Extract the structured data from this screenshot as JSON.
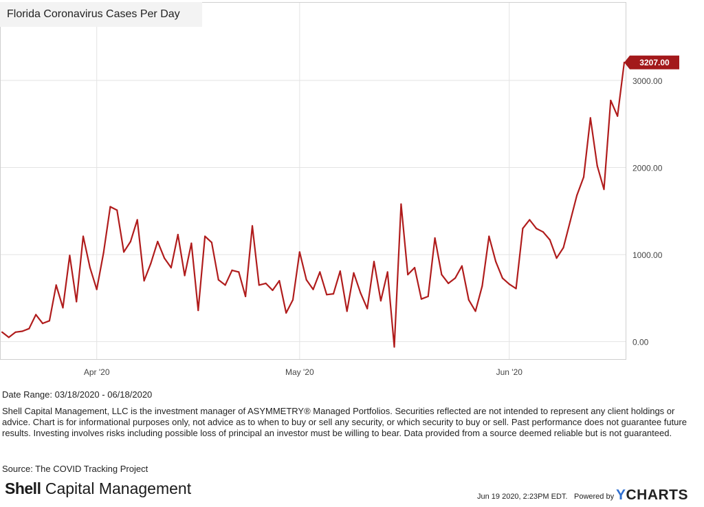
{
  "chart_data": {
    "type": "line",
    "title": "Florida Coronavirus Cases Per Day",
    "series": [
      {
        "name": "Florida Coronavirus Cases Per Day",
        "color": "#b01c1c",
        "values": [
          110,
          50,
          110,
          120,
          150,
          310,
          210,
          240,
          650,
          390,
          990,
          460,
          1210,
          850,
          600,
          1020,
          1550,
          1510,
          1030,
          1150,
          1400,
          700,
          900,
          1150,
          960,
          850,
          1230,
          760,
          1130,
          360,
          1210,
          1140,
          710,
          650,
          820,
          800,
          520,
          1330,
          650,
          670,
          590,
          700,
          330,
          480,
          1030,
          710,
          600,
          800,
          540,
          550,
          810,
          350,
          790,
          560,
          380,
          920,
          470,
          800,
          -60,
          1580,
          770,
          850,
          490,
          520,
          1190,
          770,
          670,
          730,
          870,
          480,
          350,
          640,
          1210,
          920,
          730,
          660,
          610,
          1300,
          1400,
          1300,
          1260,
          1170,
          960,
          1080,
          1380,
          1680,
          1890,
          2570,
          2020,
          1750,
          2770,
          2590,
          3207
        ]
      }
    ],
    "ylim": [
      -200,
      3900
    ],
    "yticks": [
      0,
      1000,
      2000,
      3000
    ],
    "ytick_labels": [
      "0.00",
      "1000.00",
      "2000.00",
      "3000.00"
    ],
    "xlabel": "",
    "ylabel": "",
    "xticks": [
      {
        "label": "Apr '20",
        "index": 14
      },
      {
        "label": "May '20",
        "index": 44
      },
      {
        "label": "Jun '20",
        "index": 75
      }
    ],
    "last_value_label": "3207.00",
    "grid": true
  },
  "footer": {
    "date_range": "Date Range: 03/18/2020 - 06/18/2020",
    "disclaimer": "Shell Capital Management, LLC is the investment manager of ASYMMETRY® Managed Portfolios. Securities reflected are not intended to represent any client holdings or advice. Chart is for informational purposes only, not advice as to when to buy or sell any security, or which security to buy or sell. Past performance does not guarantee future results. Investing involves risks including possible loss of principal an investor must be willing to bear. Data provided from a source deemed reliable but is not guaranteed.",
    "source": "Source: The COVID Tracking Project",
    "logo_bold": "Shell",
    "logo_rest": " Capital Management",
    "timestamp": "Jun 19 2020, 2:23PM EDT.",
    "powered_by": "Powered by",
    "brand_y": "Y",
    "brand_rest": "CHARTS"
  }
}
